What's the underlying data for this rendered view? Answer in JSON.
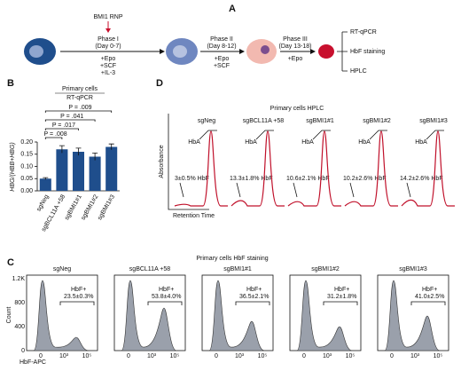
{
  "panel_a": {
    "label": "A",
    "rnp": "BMI1 RNP",
    "phases": [
      {
        "name": "Phase I",
        "days": "(Day 0-7)",
        "factors": [
          "+Epo",
          "+SCF",
          "+IL-3"
        ]
      },
      {
        "name": "Phase II",
        "days": "(Day 8-12)",
        "factors": [
          "+Epo",
          "+SCF"
        ]
      },
      {
        "name": "Phase III",
        "days": "(Day 13-18)",
        "factors": [
          "+Epo"
        ]
      }
    ],
    "outputs": [
      "RT-qPCR",
      "HbF staining",
      "HPLC"
    ]
  },
  "chart_data": {
    "type": "bar",
    "label": "B",
    "title": "Primary cells",
    "subtitle": "RT-qPCR",
    "y_label": "HBG/(HBB+HBG)",
    "categories": [
      "sgNeg",
      "sgBCL11A +58",
      "sgBMI1#1",
      "sgBMI1#2",
      "sgBMI1#3"
    ],
    "values": [
      0.05,
      0.17,
      0.16,
      0.14,
      0.18
    ],
    "errors": [
      0.004,
      0.015,
      0.015,
      0.015,
      0.012
    ],
    "color": "#1f4e8c",
    "ylim": [
      0,
      0.2
    ],
    "yticks": [
      {
        "value": 0,
        "label": "0.00"
      },
      {
        "value": 0.05,
        "label": "0.05"
      },
      {
        "value": 0.1,
        "label": "0.10"
      },
      {
        "value": 0.15,
        "label": "0.15"
      },
      {
        "value": 0.2,
        "label": "0.20"
      }
    ],
    "comparisons": [
      "P = .008",
      "P = .017",
      "P = .041",
      "P = .009"
    ]
  },
  "panel_d": {
    "label": "D",
    "title": "Primary cells HPLC",
    "y_label": "Absorbance",
    "x_label": "Retention Time",
    "peak_label": "HbA",
    "samples": [
      {
        "name": "sgNeg",
        "hbf": "3±0.5% HbF"
      },
      {
        "name": "sgBCL11A +58",
        "hbf": "13.3±1.8% HbF"
      },
      {
        "name": "sgBMI1#1",
        "hbf": "10.6±2.1% HbF"
      },
      {
        "name": "sgBMI1#2",
        "hbf": "10.2±2.6% HbF"
      },
      {
        "name": "sgBMI1#3",
        "hbf": "14.2±2.6% HbF"
      }
    ]
  },
  "panel_c": {
    "label": "C",
    "title": "Primary cells HbF staining",
    "y_label": "Count",
    "x_label": "HbF-APC",
    "gate": "HbF+",
    "yticks": [
      "0",
      "400",
      "800",
      "1.2K"
    ],
    "xticks": [
      "0",
      "10³",
      "10⁵"
    ],
    "samples": [
      {
        "name": "sgNeg",
        "pct": "23.5±0.3%"
      },
      {
        "name": "sgBCL11A +58",
        "pct": "53.8±4.0%"
      },
      {
        "name": "sgBMI1#1",
        "pct": "36.5±2.1%"
      },
      {
        "name": "sgBMI1#2",
        "pct": "31.2±1.8%"
      },
      {
        "name": "sgBMI1#3",
        "pct": "41.0±2.5%"
      }
    ]
  }
}
